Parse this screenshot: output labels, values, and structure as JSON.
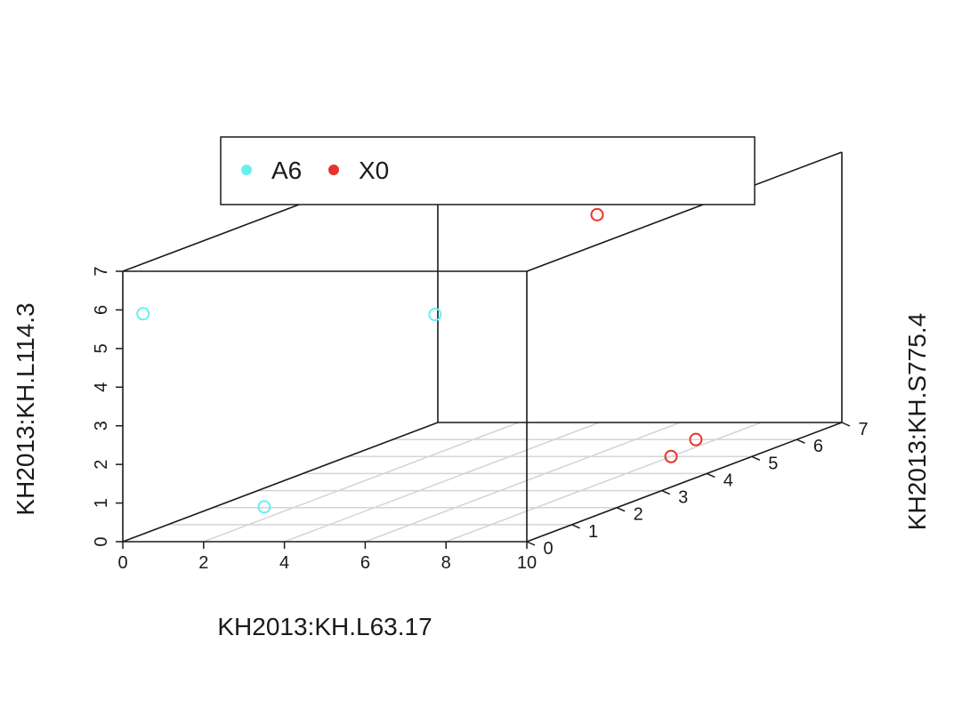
{
  "chart_data": {
    "type": "scatter3d",
    "title": "",
    "xlabel": "KH2013:KH.L63.17",
    "ylabel": "KH2013:KH.S775.4",
    "zlabel": "KH2013:KH.L114.3",
    "xlim": [
      0,
      10
    ],
    "ylim": [
      0,
      7
    ],
    "zlim": [
      0,
      7
    ],
    "x_ticks": [
      "0",
      "2",
      "4",
      "6",
      "8",
      "10"
    ],
    "y_ticks": [
      "0",
      "1",
      "2",
      "3",
      "4",
      "5",
      "6",
      "7"
    ],
    "z_ticks": [
      "0",
      "1",
      "2",
      "3",
      "4",
      "5",
      "6",
      "7"
    ],
    "grid": "floor",
    "legend_position": "top",
    "series": [
      {
        "name": "A6",
        "color": "#67f0f0",
        "points": [
          {
            "x": 0.5,
            "y": 0.0,
            "z": 5.9
          },
          {
            "x": 3.5,
            "y": 0.0,
            "z": 0.9
          },
          {
            "x": 5.5,
            "y": 2.0,
            "z": 5.0
          }
        ]
      },
      {
        "name": "X0",
        "color": "#e8332a",
        "points": [
          {
            "x": 4.5,
            "y": 6.5,
            "z": 5.6
          },
          {
            "x": 7.5,
            "y": 6.0,
            "z": 0.0
          },
          {
            "x": 8.0,
            "y": 5.0,
            "z": 0.0
          }
        ]
      }
    ]
  }
}
